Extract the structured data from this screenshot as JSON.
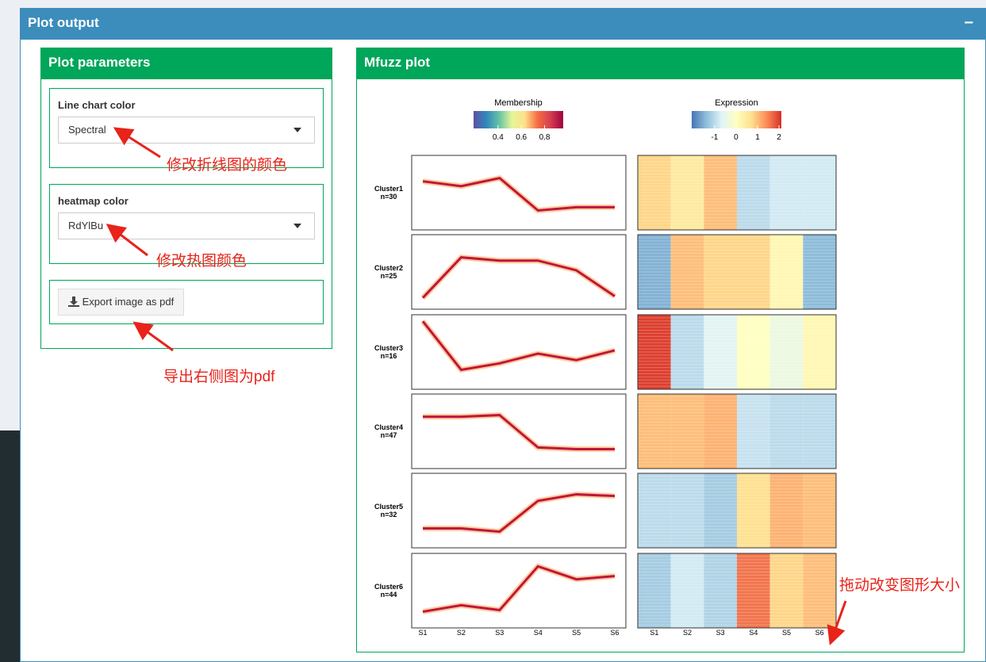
{
  "header": {
    "title": "Plot output",
    "collapse": "−"
  },
  "params": {
    "title": "Plot parameters",
    "line_color": {
      "label": "Line chart color",
      "value": "Spectral"
    },
    "heatmap_color": {
      "label": "heatmap color",
      "value": "RdYlBu"
    },
    "export": "Export image as pdf"
  },
  "annotations": [
    "修改折线图的颜色",
    "修改热图颜色",
    "导出右侧图为pdf",
    "拖动改变图形大小"
  ],
  "plot": {
    "title": "Mfuzz plot",
    "membership": {
      "title": "Membership",
      "lim": [
        0.19,
        0.96
      ],
      "ticks": [
        0.4,
        0.6,
        0.8
      ]
    },
    "expression": {
      "title": "Expression",
      "lim": [
        -2.07,
        2.11
      ],
      "ticks": [
        -1,
        0,
        1,
        2
      ]
    },
    "ylim": [
      -2.2,
      2.4
    ],
    "samples": [
      "S1",
      "S2",
      "S3",
      "S4",
      "S5",
      "S6"
    ],
    "clusters": [
      {
        "name": "Cluster1",
        "n": "n=30",
        "profile": [
          0.8,
          0.5,
          1.0,
          -1.0,
          -0.8,
          -0.8
        ]
      },
      {
        "name": "Cluster2",
        "n": "n=25",
        "profile": [
          -1.5,
          1.0,
          0.8,
          0.8,
          0.2,
          -1.4
        ]
      },
      {
        "name": "Cluster3",
        "n": "n=16",
        "profile": [
          2.0,
          -1.0,
          -0.6,
          0.0,
          -0.4,
          0.2
        ]
      },
      {
        "name": "Cluster4",
        "n": "n=47",
        "profile": [
          1.0,
          1.0,
          1.1,
          -0.9,
          -1.0,
          -1.0
        ]
      },
      {
        "name": "Cluster5",
        "n": "n=32",
        "profile": [
          -1.0,
          -1.0,
          -1.2,
          0.7,
          1.1,
          1.0
        ]
      },
      {
        "name": "Cluster6",
        "n": "n=44",
        "profile": [
          -1.2,
          -0.8,
          -1.1,
          1.6,
          0.8,
          1.0
        ]
      }
    ]
  }
}
